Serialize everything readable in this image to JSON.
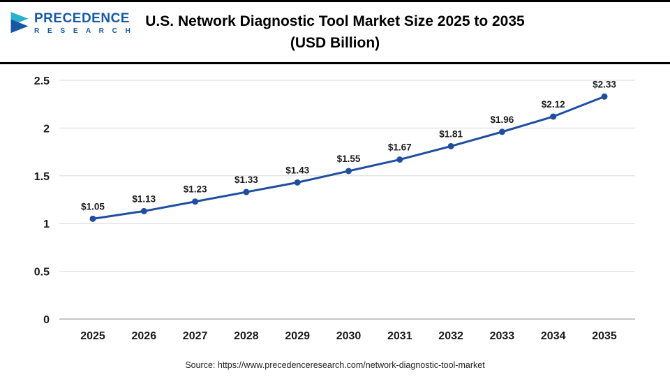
{
  "logo": {
    "name": "PRECEDENCE",
    "subname": "R E S E A R C H"
  },
  "header": {
    "title_line1": "U.S. Network Diagnostic Tool Market Size 2025 to 2035",
    "title_line2": "(USD Billion)"
  },
  "source": {
    "text": "Source: https://www.precedenceresearch.com/network-diagnostic-tool-market"
  },
  "chart_data": {
    "type": "line",
    "title": "U.S. Network Diagnostic Tool Market Size 2025 to 2035 (USD Billion)",
    "categories": [
      "2025",
      "2026",
      "2027",
      "2028",
      "2029",
      "2030",
      "2031",
      "2032",
      "2033",
      "2034",
      "2035"
    ],
    "values": [
      1.05,
      1.13,
      1.23,
      1.33,
      1.43,
      1.55,
      1.67,
      1.81,
      1.96,
      2.12,
      2.33
    ],
    "point_labels": [
      "$1.05",
      "$1.13",
      "$1.23",
      "$1.33",
      "$1.43",
      "$1.55",
      "$1.67",
      "$1.81",
      "$1.96",
      "$2.12",
      "$2.33"
    ],
    "xlabel": "",
    "ylabel": "",
    "ylim": [
      0,
      2.5
    ],
    "yticks": [
      0,
      0.5,
      1,
      1.5,
      2,
      2.5
    ],
    "ytick_labels": [
      "0",
      "0.5",
      "1",
      "1.5",
      "2",
      "2.5"
    ],
    "grid": "horizontal",
    "legend": "none",
    "line_color": "#1f4ea0",
    "marker_color": "#1f4ea0",
    "grid_color": "#d9d9d9",
    "axis_color": "#b3b3b3",
    "label_color": "#1a1a1a"
  }
}
